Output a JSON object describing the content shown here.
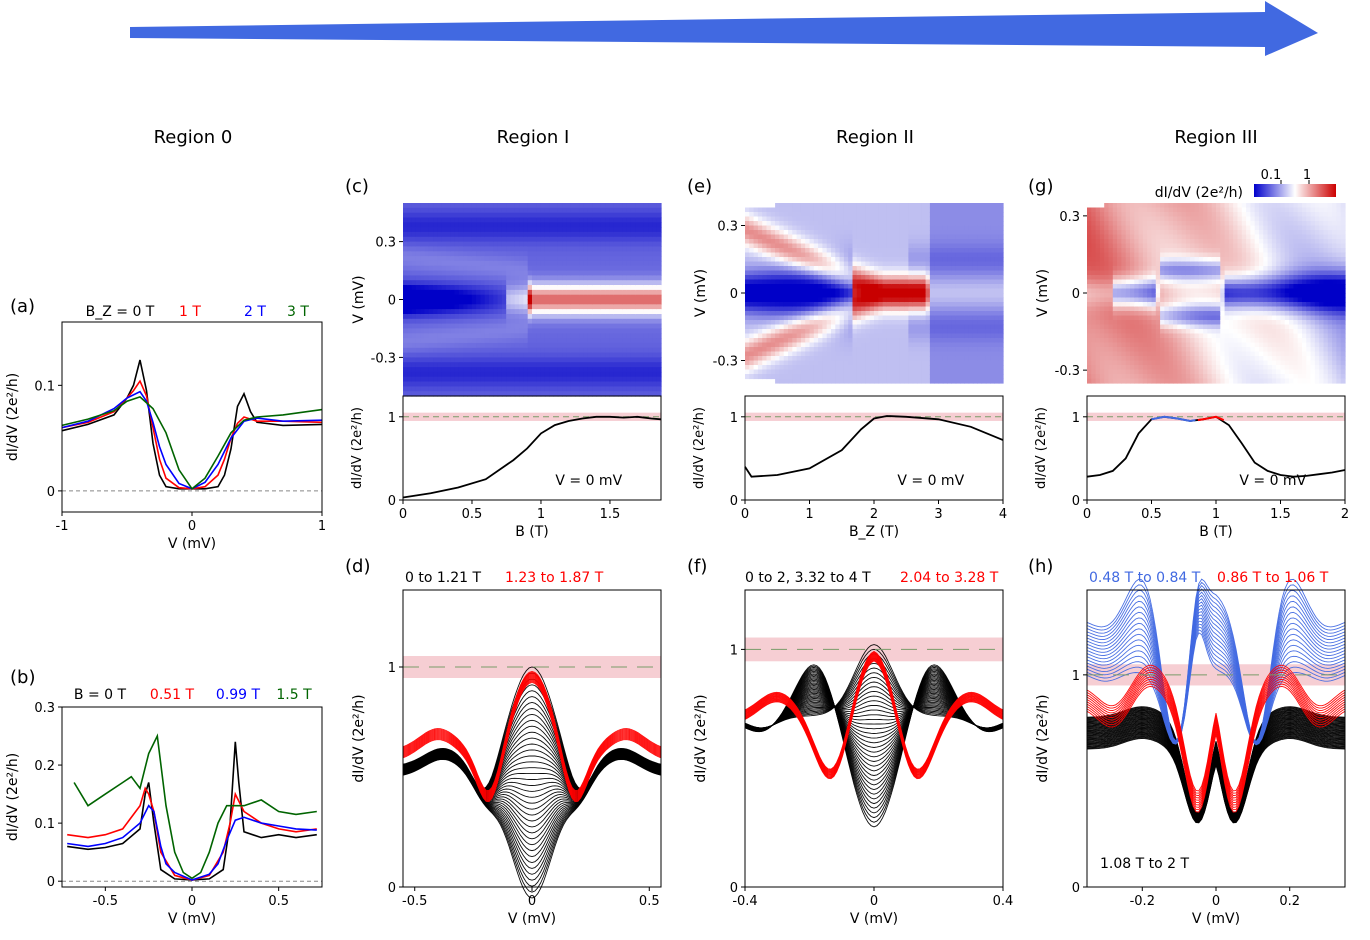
{
  "regions": [
    "Region 0",
    "Region I",
    "Region II",
    "Region III"
  ],
  "panel_letters": [
    "(a)",
    "(b)",
    "(c)",
    "(d)",
    "(e)",
    "(f)",
    "(g)",
    "(h)"
  ],
  "colorbar": {
    "label": "dI/dV (2e²/h)",
    "ticks": [
      "0.1",
      "1"
    ],
    "colors": [
      "#0000cc",
      "#ffffff",
      "#cc0000"
    ]
  },
  "chart_data": [
    {
      "panel": "(a)",
      "type": "line",
      "xlabel": "V (mV)",
      "ylabel": "dI/dV (2e²/h)",
      "xlim": [
        -1,
        1
      ],
      "ylim": [
        -0.02,
        0.16
      ],
      "xticks": [
        "-1",
        "0",
        "1"
      ],
      "yticks": [
        "0",
        "0.1"
      ],
      "reference_line": 0,
      "legend": [
        "B_Z = 0 T",
        "1 T",
        "2 T",
        "3 T"
      ],
      "series": [
        {
          "name": "B_Z = 0 T",
          "color": "#000000",
          "x": [
            -1,
            -0.8,
            -0.6,
            -0.5,
            -0.45,
            -0.4,
            -0.35,
            -0.3,
            -0.25,
            -0.2,
            -0.1,
            0,
            0.1,
            0.2,
            0.25,
            0.3,
            0.35,
            0.4,
            0.45,
            0.5,
            0.7,
            1
          ],
          "y": [
            0.057,
            0.063,
            0.072,
            0.088,
            0.1,
            0.124,
            0.095,
            0.045,
            0.015,
            0.004,
            0.002,
            0.002,
            0.002,
            0.004,
            0.015,
            0.04,
            0.08,
            0.092,
            0.075,
            0.065,
            0.062,
            0.063
          ]
        },
        {
          "name": "1 T",
          "color": "#ff0000",
          "x": [
            -1,
            -0.8,
            -0.6,
            -0.5,
            -0.45,
            -0.4,
            -0.35,
            -0.3,
            -0.25,
            -0.2,
            -0.1,
            0,
            0.1,
            0.2,
            0.25,
            0.3,
            0.35,
            0.4,
            0.45,
            0.5,
            0.7,
            1
          ],
          "y": [
            0.06,
            0.065,
            0.075,
            0.088,
            0.095,
            0.104,
            0.09,
            0.06,
            0.03,
            0.012,
            0.003,
            0.002,
            0.004,
            0.015,
            0.03,
            0.05,
            0.064,
            0.07,
            0.068,
            0.066,
            0.066,
            0.065
          ]
        },
        {
          "name": "2 T",
          "color": "#0000ff",
          "x": [
            -1,
            -0.8,
            -0.6,
            -0.5,
            -0.4,
            -0.35,
            -0.3,
            -0.25,
            -0.2,
            -0.1,
            0,
            0.1,
            0.2,
            0.3,
            0.4,
            0.5,
            0.7,
            1
          ],
          "y": [
            0.06,
            0.066,
            0.078,
            0.088,
            0.094,
            0.085,
            0.065,
            0.042,
            0.025,
            0.007,
            0.002,
            0.008,
            0.025,
            0.05,
            0.066,
            0.069,
            0.066,
            0.067
          ]
        },
        {
          "name": "3 T",
          "color": "#006400",
          "x": [
            -1,
            -0.8,
            -0.6,
            -0.5,
            -0.4,
            -0.3,
            -0.2,
            -0.1,
            0,
            0.1,
            0.2,
            0.3,
            0.4,
            0.5,
            0.7,
            1
          ],
          "y": [
            0.062,
            0.068,
            0.076,
            0.085,
            0.089,
            0.078,
            0.055,
            0.02,
            0.002,
            0.012,
            0.033,
            0.055,
            0.067,
            0.07,
            0.072,
            0.077
          ]
        }
      ]
    },
    {
      "panel": "(b)",
      "type": "line",
      "xlabel": "V (mV)",
      "ylabel": "dI/dV (2e²/h)",
      "xlim": [
        -0.75,
        0.75
      ],
      "ylim": [
        -0.01,
        0.3
      ],
      "xticks": [
        "-0.5",
        "0",
        "0.5"
      ],
      "yticks": [
        "0",
        "0.1",
        "0.2",
        "0.3"
      ],
      "reference_line": 0,
      "legend": [
        "B = 0 T",
        "0.51 T",
        "0.99 T",
        "1.5 T"
      ],
      "series": [
        {
          "name": "B = 0 T",
          "color": "#000000",
          "x": [
            -0.72,
            -0.6,
            -0.5,
            -0.4,
            -0.3,
            -0.27,
            -0.25,
            -0.22,
            -0.18,
            -0.1,
            0,
            0.1,
            0.18,
            0.22,
            0.25,
            0.27,
            0.3,
            0.4,
            0.5,
            0.6,
            0.72
          ],
          "y": [
            0.06,
            0.055,
            0.058,
            0.065,
            0.09,
            0.15,
            0.17,
            0.1,
            0.02,
            0.004,
            0.002,
            0.004,
            0.02,
            0.1,
            0.24,
            0.17,
            0.085,
            0.075,
            0.08,
            0.075,
            0.08
          ]
        },
        {
          "name": "0.51 T",
          "color": "#ff0000",
          "x": [
            -0.72,
            -0.6,
            -0.5,
            -0.4,
            -0.3,
            -0.27,
            -0.25,
            -0.22,
            -0.18,
            -0.1,
            0,
            0.1,
            0.18,
            0.22,
            0.25,
            0.3,
            0.4,
            0.5,
            0.6,
            0.72
          ],
          "y": [
            0.08,
            0.075,
            0.08,
            0.09,
            0.13,
            0.16,
            0.15,
            0.12,
            0.05,
            0.01,
            0.002,
            0.01,
            0.05,
            0.1,
            0.15,
            0.12,
            0.1,
            0.09,
            0.085,
            0.09
          ]
        },
        {
          "name": "0.99 T",
          "color": "#0000ff",
          "x": [
            -0.72,
            -0.6,
            -0.5,
            -0.4,
            -0.3,
            -0.25,
            -0.22,
            -0.18,
            -0.15,
            -0.1,
            0,
            0.1,
            0.15,
            0.2,
            0.25,
            0.3,
            0.4,
            0.5,
            0.6,
            0.72
          ],
          "y": [
            0.065,
            0.06,
            0.065,
            0.075,
            0.1,
            0.13,
            0.12,
            0.06,
            0.03,
            0.015,
            0.002,
            0.012,
            0.03,
            0.07,
            0.105,
            0.11,
            0.1,
            0.095,
            0.09,
            0.088
          ]
        },
        {
          "name": "1.5 T",
          "color": "#006400",
          "x": [
            -0.68,
            -0.6,
            -0.5,
            -0.4,
            -0.35,
            -0.3,
            -0.25,
            -0.2,
            -0.15,
            -0.1,
            -0.05,
            0,
            0.05,
            0.1,
            0.15,
            0.2,
            0.3,
            0.4,
            0.5,
            0.6,
            0.72
          ],
          "y": [
            0.17,
            0.13,
            0.15,
            0.17,
            0.18,
            0.16,
            0.22,
            0.25,
            0.13,
            0.05,
            0.015,
            0.005,
            0.015,
            0.05,
            0.1,
            0.13,
            0.13,
            0.14,
            0.12,
            0.115,
            0.12
          ]
        }
      ]
    },
    {
      "panel": "(c)",
      "type": "heatmap",
      "ylabel": "V (mV)",
      "xlim": [
        0,
        1.87
      ],
      "ylim": [
        -0.5,
        0.5
      ],
      "yticks": [
        "-0.3",
        "0",
        "0.3"
      ]
    },
    {
      "panel": "(c) lower",
      "type": "line",
      "xlabel": "B (T)",
      "ylabel": "dI/dV (2e²/h)",
      "xlim": [
        0,
        1.87
      ],
      "ylim": [
        0,
        1.25
      ],
      "xticks": [
        "0",
        "0.5",
        "1",
        "1.5"
      ],
      "yticks": [
        "0",
        "1"
      ],
      "annotation": "V = 0 mV",
      "reference_line": 1,
      "band": [
        0.95,
        1.05
      ],
      "series": [
        {
          "color": "#000000",
          "x": [
            0,
            0.2,
            0.4,
            0.6,
            0.8,
            0.9,
            1.0,
            1.1,
            1.2,
            1.3,
            1.4,
            1.5,
            1.6,
            1.7,
            1.8,
            1.87
          ],
          "y": [
            0.03,
            0.08,
            0.15,
            0.25,
            0.48,
            0.62,
            0.8,
            0.9,
            0.95,
            0.98,
            1.0,
            1.0,
            0.99,
            1.0,
            0.98,
            0.97
          ]
        }
      ]
    },
    {
      "panel": "(d)",
      "type": "line",
      "xlabel": "V (mV)",
      "ylabel": "dI/dV (2e²/h)",
      "xlim": [
        -0.55,
        0.55
      ],
      "ylim": [
        0,
        1.35
      ],
      "xticks": [
        "-0.5",
        "0",
        "0.5"
      ],
      "yticks": [
        "0",
        "1"
      ],
      "legend": [
        "0 to 1.21 T",
        "1.23 to 1.87 T"
      ],
      "reference_line": 1,
      "band": [
        0.95,
        1.05
      ]
    },
    {
      "panel": "(e)",
      "type": "heatmap",
      "ylabel": "V (mV)",
      "xlim": [
        0,
        4
      ],
      "ylim": [
        -0.4,
        0.4
      ],
      "yticks": [
        "-0.3",
        "0",
        "0.3"
      ]
    },
    {
      "panel": "(e) lower",
      "type": "line",
      "xlabel": "B_Z (T)",
      "ylabel": "dI/dV (2e²/h)",
      "xlim": [
        0,
        4
      ],
      "ylim": [
        0,
        1.25
      ],
      "xticks": [
        "0",
        "1",
        "2",
        "3",
        "4"
      ],
      "yticks": [
        "0",
        "1"
      ],
      "annotation": "V = 0 mV",
      "reference_line": 1,
      "band": [
        0.95,
        1.05
      ],
      "series": [
        {
          "color": "#000000",
          "x": [
            0,
            0.1,
            0.5,
            1.0,
            1.5,
            1.8,
            2.0,
            2.2,
            2.5,
            3.0,
            3.5,
            4.0
          ],
          "y": [
            0.4,
            0.28,
            0.3,
            0.38,
            0.6,
            0.85,
            0.98,
            1.01,
            1.0,
            0.97,
            0.88,
            0.72
          ]
        }
      ]
    },
    {
      "panel": "(f)",
      "type": "line",
      "xlabel": "V (mV)",
      "ylabel": "dI/dV (2e²/h)",
      "xlim": [
        -0.4,
        0.4
      ],
      "ylim": [
        0,
        1.25
      ],
      "xticks": [
        "-0.4",
        "0",
        "0.4"
      ],
      "yticks": [
        "0",
        "1"
      ],
      "legend": [
        "0 to 2, 3.32 to 4 T",
        "2.04 to 3.28 T"
      ],
      "reference_line": 1,
      "band": [
        0.95,
        1.05
      ]
    },
    {
      "panel": "(g)",
      "type": "heatmap",
      "ylabel": "V (mV)",
      "xlim": [
        0,
        2
      ],
      "ylim": [
        -0.35,
        0.35
      ],
      "yticks": [
        "-0.3",
        "0",
        "0.3"
      ]
    },
    {
      "panel": "(g) lower",
      "type": "line",
      "xlabel": "B (T)",
      "ylabel": "dI/dV (2e²/h)",
      "xlim": [
        0,
        2
      ],
      "ylim": [
        0,
        1.25
      ],
      "xticks": [
        "0",
        "0.5",
        "1",
        "1.5",
        "2"
      ],
      "yticks": [
        "0",
        "1"
      ],
      "annotation": "V = 0 mV",
      "reference_line": 1,
      "band": [
        0.95,
        1.05
      ],
      "series": [
        {
          "color": "#000000",
          "x": [
            0,
            0.1,
            0.2,
            0.3,
            0.4,
            0.5,
            0.6,
            0.7,
            0.8,
            0.9,
            1.0,
            1.1,
            1.2,
            1.3,
            1.4,
            1.5,
            1.6,
            1.7,
            1.8,
            1.9,
            2.0
          ],
          "y": [
            0.28,
            0.3,
            0.35,
            0.5,
            0.8,
            0.97,
            1.0,
            0.98,
            0.95,
            0.97,
            1.0,
            0.9,
            0.68,
            0.45,
            0.35,
            0.3,
            0.28,
            0.29,
            0.31,
            0.33,
            0.36
          ]
        }
      ]
    },
    {
      "panel": "(h)",
      "type": "line",
      "xlabel": "V (mV)",
      "ylabel": "dI/dV (2e²/h)",
      "xlim": [
        -0.35,
        0.35
      ],
      "ylim": [
        0,
        1.4
      ],
      "xticks": [
        "-0.2",
        "0",
        "0.2"
      ],
      "yticks": [
        "0",
        "1"
      ],
      "legend": [
        "0.48 T to 0.84 T",
        "0.86 T to 1.06 T",
        "1.08 T to 2 T"
      ],
      "reference_line": 1,
      "band": [
        0.95,
        1.05
      ]
    }
  ]
}
